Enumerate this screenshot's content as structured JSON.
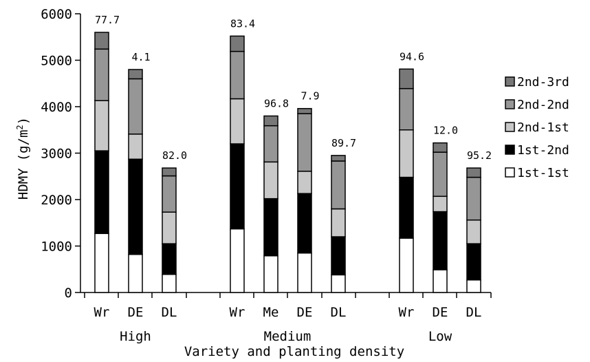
{
  "chart_data": {
    "type": "bar",
    "stacked": true,
    "ylabel": "HDMY",
    "ylabel_unit": "(g/m",
    "ylabel_unit_sup": "2",
    "ylabel_unit_close": ")",
    "xlabel": "Variety and planting density",
    "ylim": [
      0,
      6000
    ],
    "yticks": [
      "0",
      "1000",
      "2000",
      "3000",
      "4000",
      "5000",
      "6000"
    ],
    "grid": false,
    "legend_position": "right",
    "groups": [
      {
        "label": "High",
        "categories": [
          "Wr",
          "DE",
          "DL"
        ]
      },
      {
        "label": "Medium",
        "categories": [
          "Wr",
          "Me",
          "DE",
          "DL"
        ]
      },
      {
        "label": "Low",
        "categories": [
          "Wr",
          "DE",
          "DL"
        ]
      }
    ],
    "categories": [
      "Wr",
      "DE",
      "DL",
      "Wr",
      "Me",
      "DE",
      "DL",
      "Wr",
      "DE",
      "DL"
    ],
    "bar_labels": [
      "77.7",
      "4.1",
      "82.0",
      "83.4",
      "96.8",
      "7.9",
      "89.7",
      "94.6",
      "12.0",
      "95.2"
    ],
    "series": [
      {
        "name": "1st-1st",
        "color": "#ffffff",
        "values": [
          1270,
          820,
          390,
          1370,
          790,
          850,
          380,
          1170,
          490,
          270
        ]
      },
      {
        "name": "1st-2nd",
        "color": "#000000",
        "values": [
          1780,
          2050,
          660,
          1830,
          1230,
          1280,
          820,
          1310,
          1250,
          780
        ]
      },
      {
        "name": "2nd-1st",
        "color": "#c8c8c8",
        "values": [
          1080,
          540,
          680,
          970,
          790,
          480,
          600,
          1020,
          330,
          510
        ]
      },
      {
        "name": "2nd-2nd",
        "color": "#969696",
        "values": [
          1110,
          1190,
          780,
          1020,
          780,
          1240,
          1030,
          890,
          950,
          920
        ]
      },
      {
        "name": "2nd-3rd",
        "color": "#787878",
        "values": [
          360,
          200,
          170,
          330,
          210,
          110,
          120,
          420,
          200,
          200
        ]
      }
    ],
    "legend": [
      "2nd-3rd",
      "2nd-2nd",
      "2nd-1st",
      "1st-2nd",
      "1st-1st"
    ]
  }
}
